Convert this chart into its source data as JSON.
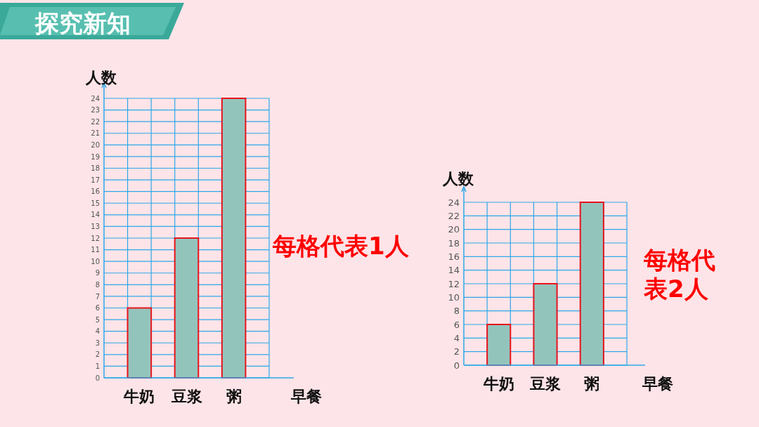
{
  "chart_data": [
    {
      "type": "bar",
      "title": "探究新知",
      "xlabel": "早餐",
      "ylabel": "人数",
      "categories": [
        "牛奶",
        "豆浆",
        "粥"
      ],
      "values": [
        6,
        12,
        24
      ],
      "color": "#93c4bc",
      "ylim": [
        0,
        24
      ],
      "yticks": [
        0,
        1,
        2,
        3,
        4,
        5,
        6,
        7,
        8,
        9,
        10,
        11,
        12,
        13,
        14,
        15,
        16,
        17,
        18,
        19,
        20,
        21,
        22,
        23,
        24
      ],
      "grid": true,
      "annotations": [
        "每格代表1人"
      ]
    },
    {
      "type": "bar",
      "xlabel": "早餐",
      "ylabel": "人数",
      "categories": [
        "牛奶",
        "豆浆",
        "粥"
      ],
      "values": [
        6,
        12,
        24
      ],
      "color": "#93c4bc",
      "ylim": [
        0,
        24
      ],
      "yticks": [
        0,
        2,
        4,
        6,
        8,
        10,
        12,
        14,
        16,
        18,
        20,
        22,
        24
      ],
      "grid": true,
      "annotations": [
        "每格代表2人"
      ]
    }
  ]
}
